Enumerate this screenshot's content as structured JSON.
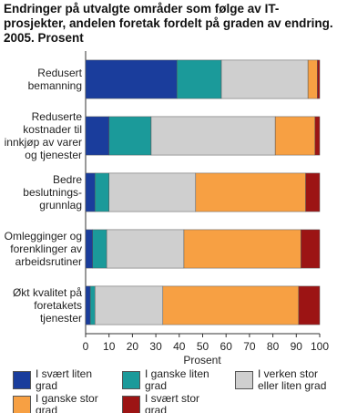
{
  "chart_data": {
    "type": "stacked-bar-horizontal",
    "title": "Endringer på utvalgte områder som følge av IT-prosjekter, andelen foretak fordelt på graden av endring. 2005. Prosent",
    "xlabel": "Prosent",
    "categories": [
      "Redusert bemanning",
      "Reduserte kostnader til innkjøp av varer og tjenester",
      "Bedre beslutnings-grunnlag",
      "Omlegginger og forenklinger av arbeidsrutiner",
      "Økt kvalitet på foretakets tjenester"
    ],
    "series": [
      {
        "name": "I svært liten grad",
        "color": "#1a3d9c",
        "values": [
          39,
          10,
          4,
          3,
          2
        ]
      },
      {
        "name": "I ganske liten grad",
        "color": "#1b9a9a",
        "values": [
          19,
          18,
          6,
          6,
          2
        ]
      },
      {
        "name": "I verken stor eller liten grad",
        "color": "#cfcfcf",
        "values": [
          37,
          53,
          37,
          33,
          29
        ]
      },
      {
        "name": "I ganske stor grad",
        "color": "#f7a043",
        "values": [
          4,
          17,
          47,
          50,
          58
        ]
      },
      {
        "name": "I svært stor grad",
        "color": "#9c1414",
        "values": [
          1,
          2,
          6,
          8,
          9
        ]
      }
    ],
    "xlim": [
      0,
      100
    ],
    "xticks": [
      0,
      10,
      20,
      30,
      40,
      50,
      60,
      70,
      80,
      90,
      100
    ],
    "grid": false
  }
}
